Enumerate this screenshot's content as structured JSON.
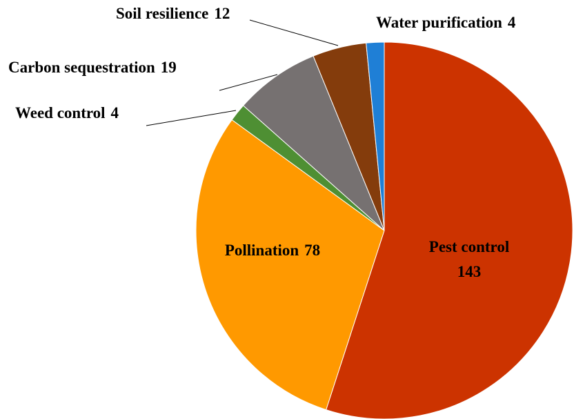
{
  "chart_data": {
    "type": "pie",
    "categories": [
      "Pest control",
      "Pollination",
      "Weed control",
      "Carbon sequestration",
      "Soil resilience",
      "Water purification"
    ],
    "values": [
      143,
      78,
      4,
      19,
      12,
      4
    ],
    "colors": [
      "#cc3300",
      "#ff9900",
      "#4e8f33",
      "#767171",
      "#843c0c",
      "#1f7fd6"
    ]
  }
}
